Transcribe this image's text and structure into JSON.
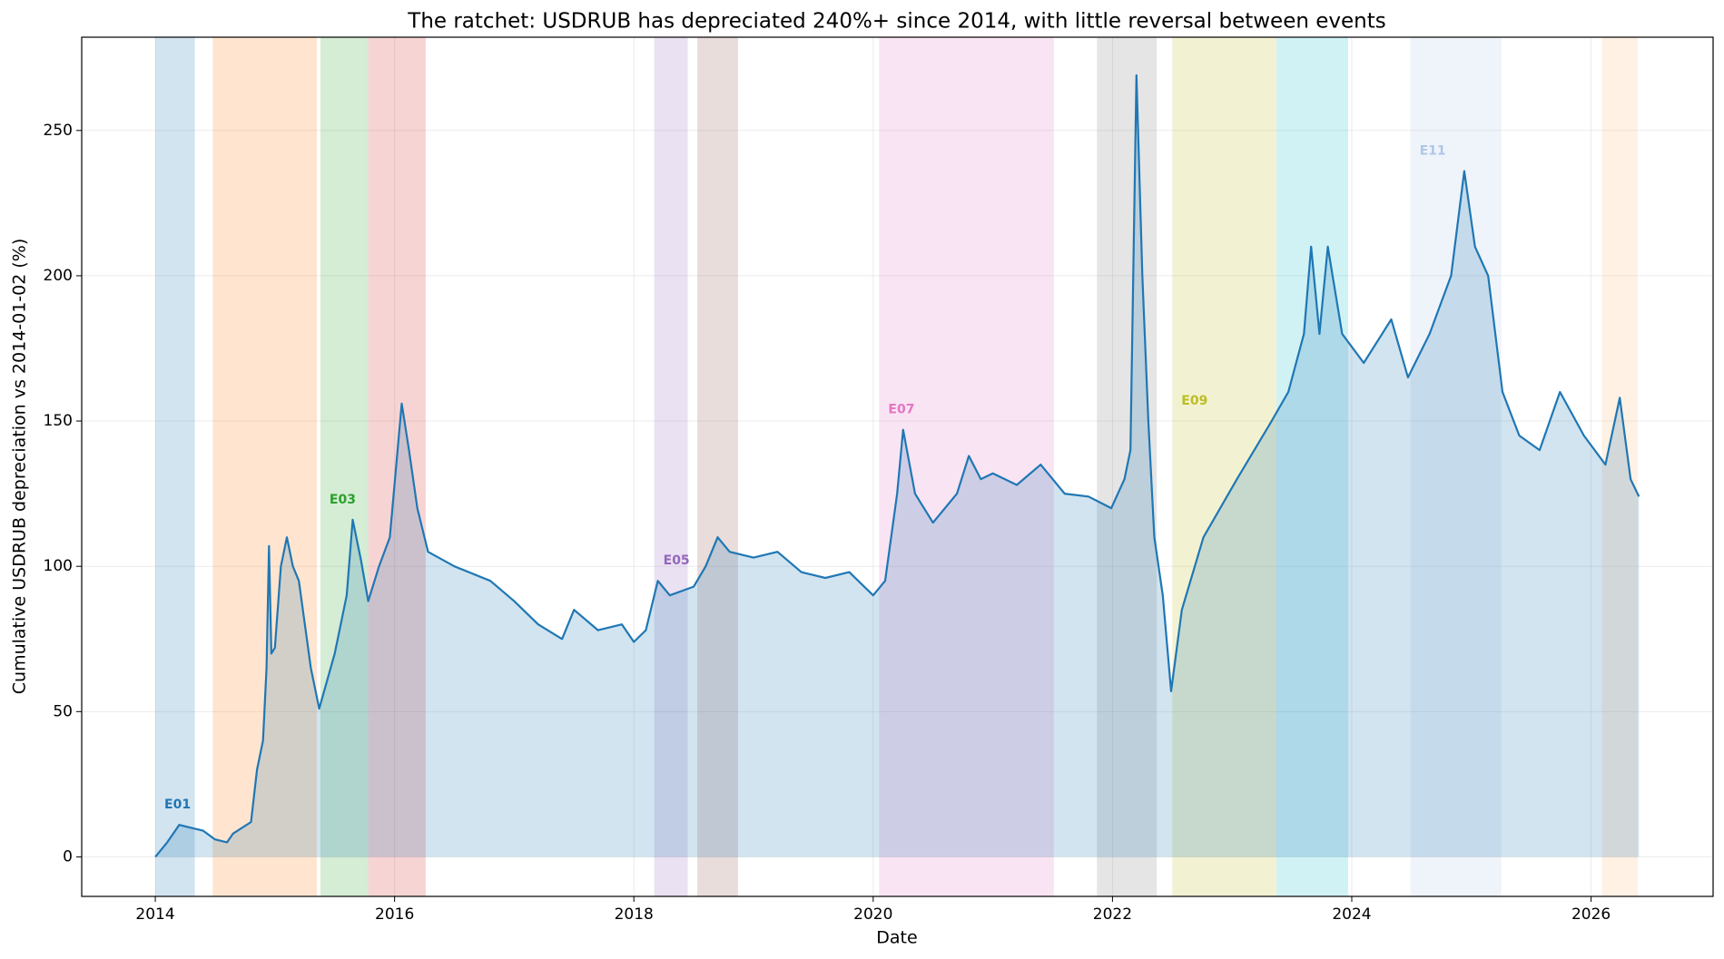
{
  "chart_data": {
    "type": "line",
    "title": "The ratchet: USDRUB has depreciated 240%+ since 2014, with little reversal between events",
    "xlabel": "Date",
    "ylabel": "Cumulative USDRUB depreciation vs 2014-01-02 (%)",
    "x": [
      2014.0,
      2014.1,
      2014.2,
      2014.3,
      2014.4,
      2014.5,
      2014.6,
      2014.65,
      2014.8,
      2014.85,
      2014.9,
      2014.93,
      2014.95,
      2014.97,
      2015.0,
      2015.05,
      2015.1,
      2015.15,
      2015.2,
      2015.25,
      2015.3,
      2015.37,
      2015.5,
      2015.6,
      2015.65,
      2015.72,
      2015.78,
      2015.87,
      2015.96,
      2016.06,
      2016.12,
      2016.19,
      2016.28,
      2016.5,
      2016.8,
      2017.0,
      2017.2,
      2017.4,
      2017.5,
      2017.7,
      2017.9,
      2018.0,
      2018.1,
      2018.2,
      2018.3,
      2018.5,
      2018.6,
      2018.7,
      2018.8,
      2019.0,
      2019.2,
      2019.4,
      2019.6,
      2019.8,
      2020.0,
      2020.1,
      2020.2,
      2020.25,
      2020.35,
      2020.5,
      2020.7,
      2020.8,
      2020.9,
      2021.0,
      2021.2,
      2021.4,
      2021.6,
      2021.8,
      2021.99,
      2022.1,
      2022.15,
      2022.2,
      2022.25,
      2022.3,
      2022.35,
      2022.42,
      2022.49,
      2022.58,
      2022.76,
      2023.04,
      2023.33,
      2023.47,
      2023.6,
      2023.66,
      2023.73,
      2023.8,
      2023.92,
      2024.1,
      2024.33,
      2024.47,
      2024.65,
      2024.83,
      2024.94,
      2025.03,
      2025.14,
      2025.26,
      2025.4,
      2025.57,
      2025.74,
      2025.94,
      2026.12,
      2026.24,
      2026.33,
      2026.4
    ],
    "series": [
      {
        "color": "#1f77b4",
        "values": [
          0,
          5,
          11,
          10,
          9,
          6,
          5,
          8,
          12,
          30,
          40,
          65,
          107,
          70,
          72,
          100,
          110,
          100,
          95,
          80,
          65,
          51,
          70,
          90,
          116,
          102,
          88,
          100,
          110,
          156,
          140,
          120,
          105,
          100,
          95,
          88,
          80,
          75,
          85,
          78,
          80,
          74,
          78,
          95,
          90,
          93,
          100,
          110,
          105,
          103,
          105,
          98,
          96,
          98,
          90,
          95,
          125,
          147,
          125,
          115,
          125,
          138,
          130,
          132,
          128,
          135,
          125,
          124,
          120,
          130,
          140,
          269,
          200,
          150,
          110,
          90,
          57,
          85,
          110,
          130,
          150,
          160,
          180,
          210,
          180,
          210,
          180,
          170,
          185,
          165,
          180,
          200,
          236,
          210,
          200,
          160,
          145,
          140,
          160,
          145,
          135,
          158,
          130,
          124
        ]
      }
    ],
    "bands": [
      {
        "x0": 2014.0,
        "x1": 2014.33,
        "color": "#1f77b4",
        "label": "E01"
      },
      {
        "x0": 2014.48,
        "x1": 2015.35,
        "color": "#ff7f0e"
      },
      {
        "x0": 2015.38,
        "x1": 2015.78,
        "color": "#2ca02c",
        "label": "E03"
      },
      {
        "x0": 2015.78,
        "x1": 2016.26,
        "color": "#d62728"
      },
      {
        "x0": 2018.17,
        "x1": 2018.45,
        "color": "#9467bd",
        "label": "E05"
      },
      {
        "x0": 2018.53,
        "x1": 2018.87,
        "color": "#8c564b"
      },
      {
        "x0": 2020.05,
        "x1": 2021.51,
        "color": "#e377c2",
        "label": "E07"
      },
      {
        "x0": 2021.87,
        "x1": 2022.37,
        "color": "#7f7f7f"
      },
      {
        "x0": 2022.5,
        "x1": 2023.37,
        "color": "#bcbd22",
        "label": "E09"
      },
      {
        "x0": 2023.37,
        "x1": 2023.97,
        "color": "#17becf"
      },
      {
        "x0": 2024.49,
        "x1": 2025.25,
        "color": "#aec7e8",
        "label": "E11"
      },
      {
        "x0": 2026.09,
        "x1": 2026.39,
        "color": "#ffbb78"
      }
    ],
    "xlim": [
      2013.385,
      2027.02
    ],
    "xticks": [
      2014,
      2016,
      2018,
      2020,
      2022,
      2024,
      2026
    ],
    "ylim": [
      -13.6,
      282.1
    ],
    "yticks": [
      0,
      50,
      100,
      150,
      200,
      250
    ],
    "grid": true
  }
}
